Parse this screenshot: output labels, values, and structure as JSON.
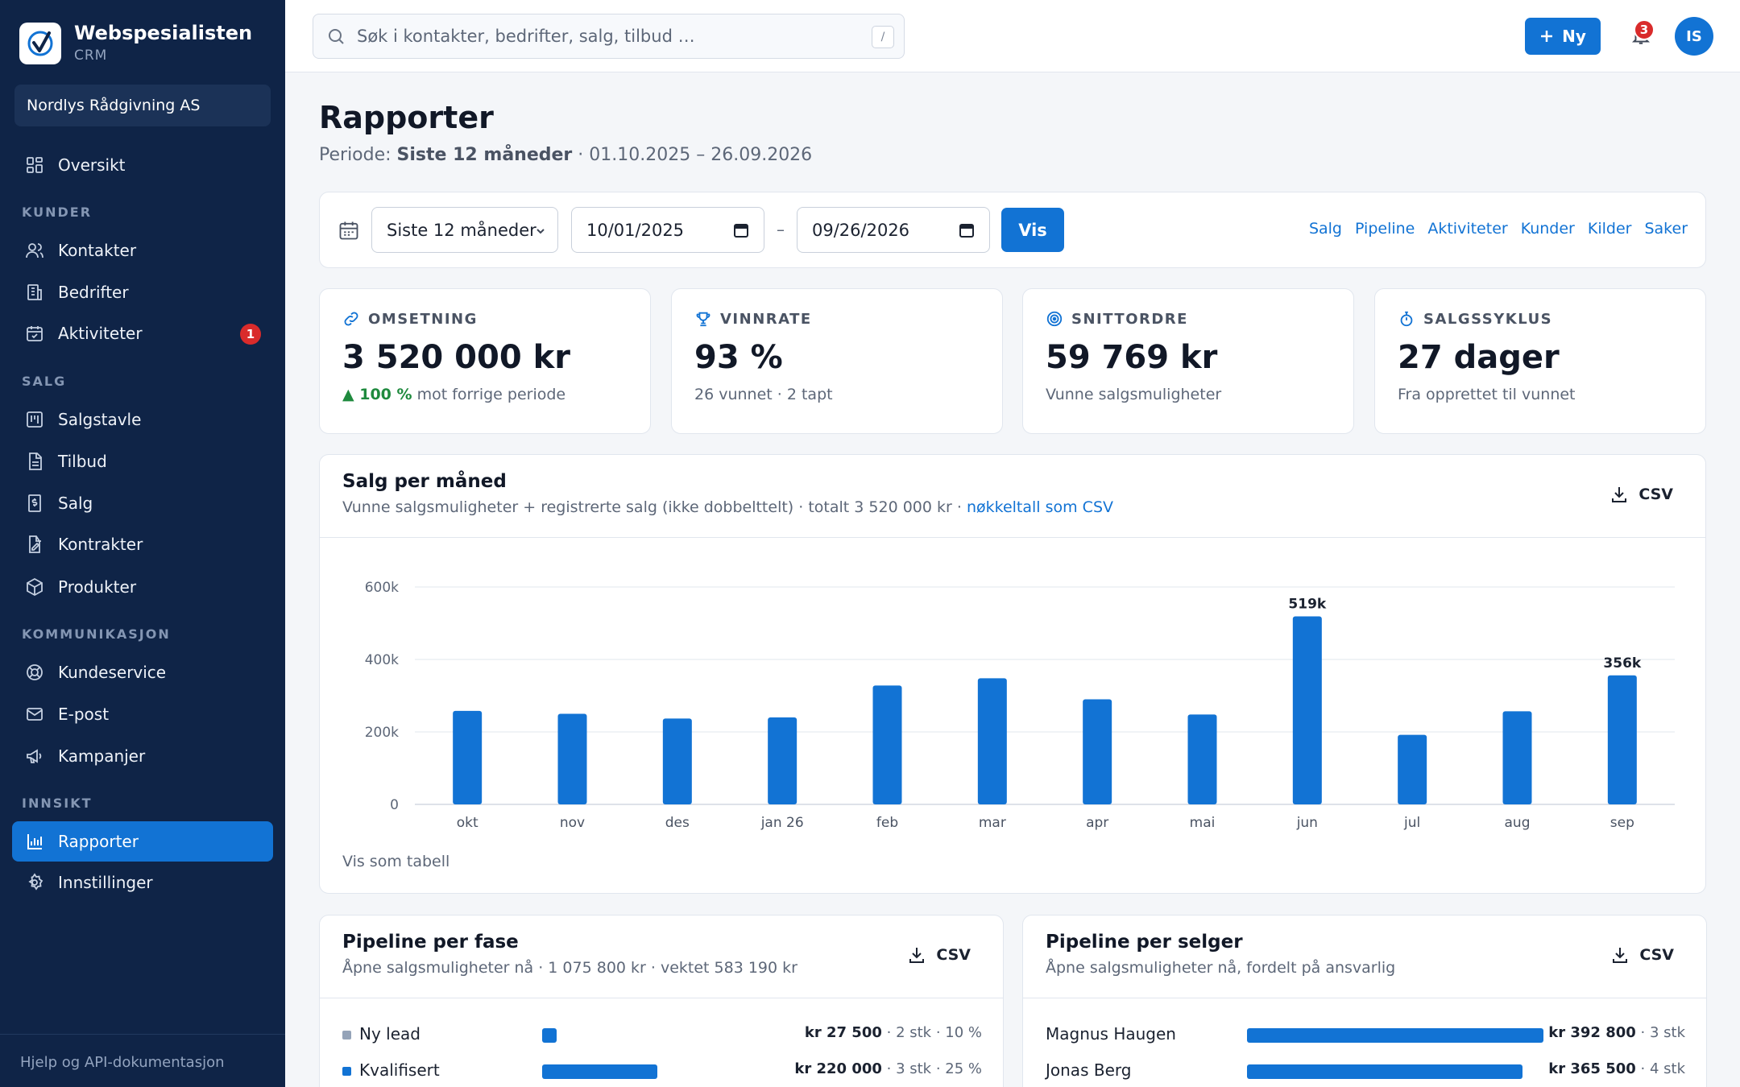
{
  "brand": {
    "name": "Webspesialisten",
    "sub": "CRM"
  },
  "org": "Nordlys Rådgivning AS",
  "nav": {
    "overview": "Oversikt",
    "sections": {
      "kunder": "KUNDER",
      "salg": "SALG",
      "kommunikasjon": "KOMMUNIKASJON",
      "innsikt": "INNSIKT"
    },
    "kontakter": "Kontakter",
    "bedrifter": "Bedrifter",
    "aktiviteter": "Aktiviteter",
    "aktiviteter_badge": "1",
    "salgstavle": "Salgstavle",
    "tilbud": "Tilbud",
    "salg": "Salg",
    "kontrakter": "Kontrakter",
    "produkter": "Produkter",
    "kundeservice": "Kundeservice",
    "epost": "E-post",
    "kampanjer": "Kampanjer",
    "rapporter": "Rapporter",
    "innstillinger": "Innstillinger"
  },
  "sidebar_footer": "Hjelp og API-dokumentasjon",
  "topbar": {
    "search_placeholder": "Søk i kontakter, bedrifter, salg, tilbud …",
    "search_shortcut": "/",
    "new_label": "Ny",
    "notification_count": "3",
    "avatar_initials": "IS"
  },
  "page": {
    "title": "Rapporter",
    "period_prefix": "Periode:",
    "period_name": "Siste 12 måneder",
    "period_range": "· 01.10.2025 – 26.09.2026"
  },
  "filters": {
    "period_select": "Siste 12 måneder",
    "from_date": "10/01/2025",
    "to_date": "09/26/2026",
    "separator": "–",
    "show_label": "Vis",
    "quick_links": [
      "Salg",
      "Pipeline",
      "Aktiviteter",
      "Kunder",
      "Kilder",
      "Saker"
    ]
  },
  "kpis": [
    {
      "label": "OMSETNING",
      "value": "3 520 000 kr",
      "delta": "▲ 100 %",
      "sub": "mot forrige periode",
      "icon": "link-icon"
    },
    {
      "label": "VINNRATE",
      "value": "93 %",
      "sub": "26 vunnet · 2 tapt",
      "icon": "trophy-icon"
    },
    {
      "label": "SNITTORDRE",
      "value": "59 769 kr",
      "sub": "Vunne salgsmuligheter",
      "icon": "target-icon"
    },
    {
      "label": "SALGSSYKLUS",
      "value": "27 dager",
      "sub": "Fra opprettet til vunnet",
      "icon": "stopwatch-icon"
    }
  ],
  "sales_chart": {
    "title": "Salg per måned",
    "subtitle": "Vunne salgsmuligheter + registrerte salg (ikke dobbelttelt) · totalt 3 520 000 kr ·",
    "subtitle_link": "nøkkeltall som CSV",
    "csv_label": "CSV",
    "table_toggle": "Vis som tabell"
  },
  "chart_data": {
    "type": "bar",
    "categories": [
      "okt",
      "nov",
      "des",
      "jan 26",
      "feb",
      "mar",
      "apr",
      "mai",
      "jun",
      "jul",
      "aug",
      "sep"
    ],
    "values": [
      258000,
      250000,
      237000,
      240000,
      328000,
      348000,
      290000,
      248000,
      519000,
      192000,
      257000,
      356000
    ],
    "data_labels": {
      "8": "519k",
      "11": "356k"
    },
    "y_ticks": [
      0,
      200000,
      400000,
      600000
    ],
    "y_tick_labels": [
      "0",
      "200k",
      "400k",
      "600k"
    ],
    "ylim": [
      0,
      600000
    ],
    "bar_color": "#1273d4",
    "grid": true
  },
  "pipeline_stage": {
    "title": "Pipeline per fase",
    "subtitle": "Åpne salgsmuligheter nå · 1 075 800 kr · vektet 583 190 kr",
    "csv_label": "CSV",
    "rows": [
      {
        "label": "Ny lead",
        "amount": "kr 27 500",
        "meta": "· 2 stk · 10 %",
        "share": 0.07,
        "color": "#94a3b8"
      },
      {
        "label": "Kvalifisert",
        "amount": "kr 220 000",
        "meta": "· 3 stk · 25 %",
        "share": 0.56,
        "color": "#1273d4"
      }
    ]
  },
  "pipeline_seller": {
    "title": "Pipeline per selger",
    "subtitle": "Åpne salgsmuligheter nå, fordelt på ansvarlig",
    "csv_label": "CSV",
    "rows": [
      {
        "label": "Magnus Haugen",
        "amount": "kr 392 800",
        "meta": "· 3 stk",
        "share": 1.0
      },
      {
        "label": "Jonas Berg",
        "amount": "kr 365 500",
        "meta": "· 4 stk",
        "share": 0.93
      }
    ]
  }
}
